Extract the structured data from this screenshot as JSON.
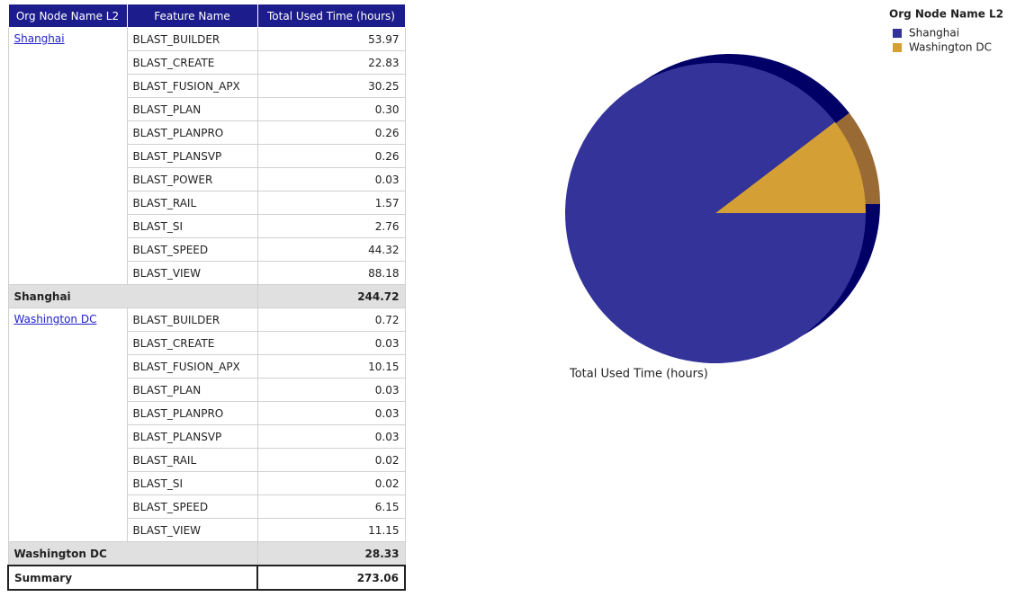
{
  "table": {
    "columns": [
      "Org Node Name L2",
      "Feature Name",
      "Total Used Time (hours)"
    ],
    "groups": [
      {
        "name": "Shanghai",
        "total": "244.72",
        "rows": [
          [
            "BLAST_BUILDER",
            "53.97"
          ],
          [
            "BLAST_CREATE",
            "22.83"
          ],
          [
            "BLAST_FUSION_APX",
            "30.25"
          ],
          [
            "BLAST_PLAN",
            "0.30"
          ],
          [
            "BLAST_PLANPRO",
            "0.26"
          ],
          [
            "BLAST_PLANSVP",
            "0.26"
          ],
          [
            "BLAST_POWER",
            "0.03"
          ],
          [
            "BLAST_RAIL",
            "1.57"
          ],
          [
            "BLAST_SI",
            "2.76"
          ],
          [
            "BLAST_SPEED",
            "44.32"
          ],
          [
            "BLAST_VIEW",
            "88.18"
          ]
        ]
      },
      {
        "name": "Washington DC",
        "total": "28.33",
        "rows": [
          [
            "BLAST_BUILDER",
            "0.72"
          ],
          [
            "BLAST_CREATE",
            "0.03"
          ],
          [
            "BLAST_FUSION_APX",
            "10.15"
          ],
          [
            "BLAST_PLAN",
            "0.03"
          ],
          [
            "BLAST_PLANPRO",
            "0.03"
          ],
          [
            "BLAST_PLANSVP",
            "0.03"
          ],
          [
            "BLAST_RAIL",
            "0.02"
          ],
          [
            "BLAST_SI",
            "0.02"
          ],
          [
            "BLAST_SPEED",
            "6.15"
          ],
          [
            "BLAST_VIEW",
            "11.15"
          ]
        ]
      }
    ],
    "summary": {
      "label": "Summary",
      "value": "273.06"
    }
  },
  "chart_data": {
    "type": "pie",
    "legend_title": "Org Node Name L2",
    "label": "Total Used Time (hours)",
    "legend": "top-right",
    "series": [
      {
        "name": "Shanghai",
        "color": "#333399",
        "depth_color": "#000066",
        "value": 244.72
      },
      {
        "name": "Washington DC",
        "color": "#d4a035",
        "depth_color": "#9a6a35",
        "value": 28.33
      }
    ]
  }
}
